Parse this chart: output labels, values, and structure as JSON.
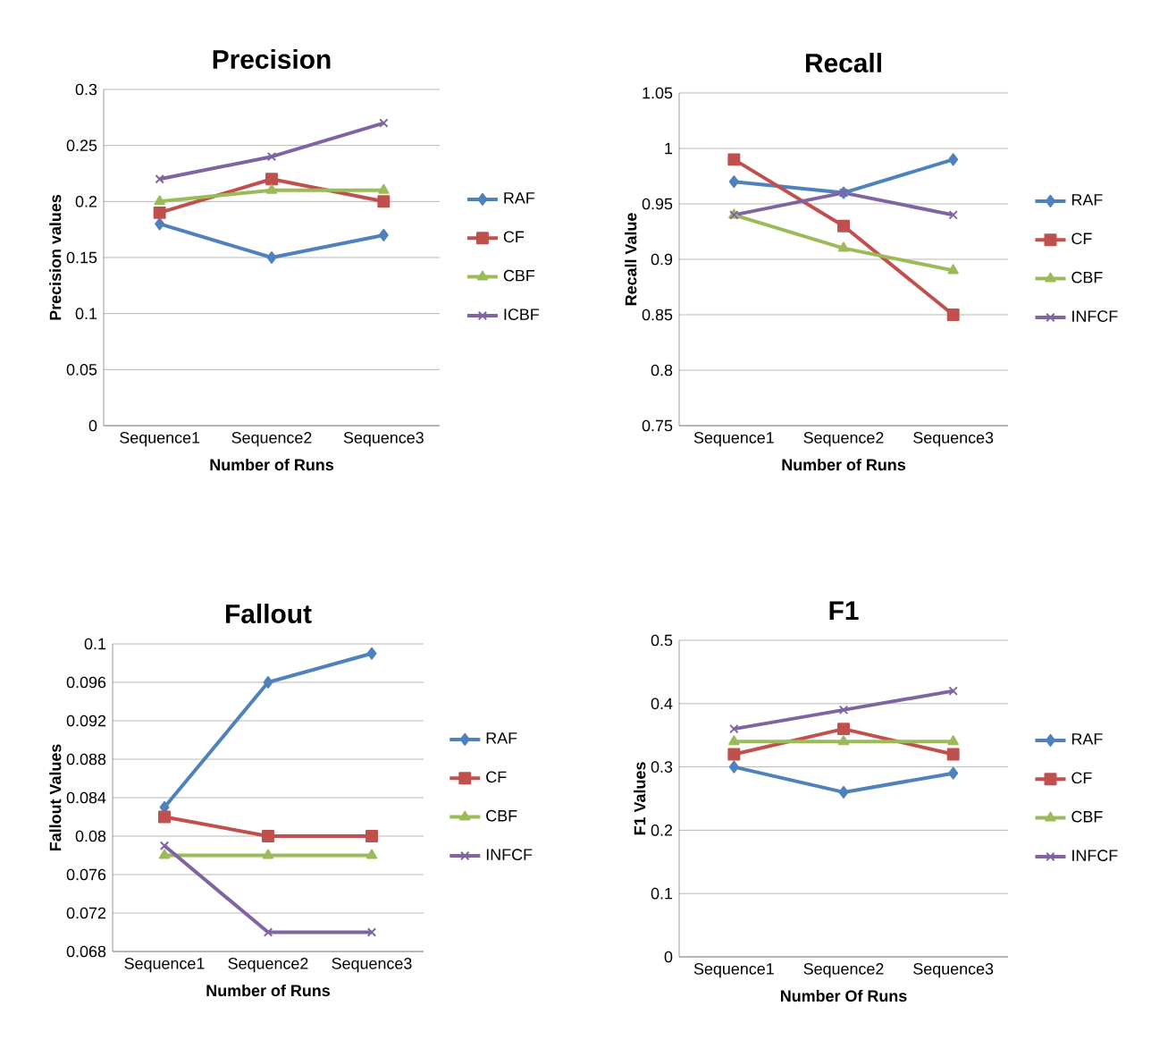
{
  "chart_data": [
    {
      "type": "line",
      "title": "Precision",
      "xlabel": "Number of Runs",
      "ylabel": "Precision  values",
      "categories": [
        "Sequence1",
        "Sequence2",
        "Sequence3"
      ],
      "ylim": [
        0,
        0.3
      ],
      "yticks": [
        0,
        0.05,
        0.1,
        0.15,
        0.2,
        0.25,
        0.3
      ],
      "grid": "y",
      "legend": "right",
      "series": [
        {
          "name": "RAF",
          "color": "#4f81bd",
          "marker": "diamond",
          "values": [
            0.18,
            0.15,
            0.17
          ]
        },
        {
          "name": "CF",
          "color": "#c0504d",
          "marker": "square",
          "values": [
            0.19,
            0.22,
            0.2
          ]
        },
        {
          "name": "CBF",
          "color": "#9bbb59",
          "marker": "triangle",
          "values": [
            0.2,
            0.21,
            0.21
          ]
        },
        {
          "name": "ICBF",
          "color": "#8064a2",
          "marker": "cross",
          "values": [
            0.22,
            0.24,
            0.27
          ]
        }
      ]
    },
    {
      "type": "line",
      "title": "Recall",
      "xlabel": "Number of Runs",
      "ylabel": "Recall Value",
      "categories": [
        "Sequence1",
        "Sequence2",
        "Sequence3"
      ],
      "ylim": [
        0.75,
        1.05
      ],
      "yticks": [
        0.75,
        0.8,
        0.85,
        0.9,
        0.95,
        1,
        1.05
      ],
      "grid": "y",
      "legend": "right",
      "series": [
        {
          "name": "RAF",
          "color": "#4f81bd",
          "marker": "diamond",
          "values": [
            0.97,
            0.96,
            0.99
          ]
        },
        {
          "name": "CF",
          "color": "#c0504d",
          "marker": "square",
          "values": [
            0.99,
            0.93,
            0.85
          ]
        },
        {
          "name": "CBF",
          "color": "#9bbb59",
          "marker": "triangle",
          "values": [
            0.94,
            0.91,
            0.89
          ]
        },
        {
          "name": "INFCF",
          "color": "#8064a2",
          "marker": "cross",
          "values": [
            0.94,
            0.96,
            0.94
          ]
        }
      ]
    },
    {
      "type": "line",
      "title": "Fallout",
      "xlabel": "Number of Runs",
      "ylabel": "Fallout Values",
      "categories": [
        "Sequence1",
        "Sequence2",
        "Sequence3"
      ],
      "ylim": [
        0.068,
        0.1
      ],
      "yticks": [
        0.068,
        0.072,
        0.076,
        0.08,
        0.084,
        0.088,
        0.092,
        0.096,
        0.1
      ],
      "grid": "y",
      "legend": "right",
      "series": [
        {
          "name": "RAF",
          "color": "#4f81bd",
          "marker": "diamond",
          "values": [
            0.083,
            0.096,
            0.099
          ]
        },
        {
          "name": "CF",
          "color": "#c0504d",
          "marker": "square",
          "values": [
            0.082,
            0.08,
            0.08
          ]
        },
        {
          "name": "CBF",
          "color": "#9bbb59",
          "marker": "triangle",
          "values": [
            0.078,
            0.078,
            0.078
          ]
        },
        {
          "name": "INFCF",
          "color": "#8064a2",
          "marker": "cross",
          "values": [
            0.079,
            0.07,
            0.07
          ]
        }
      ]
    },
    {
      "type": "line",
      "title": "F1",
      "xlabel": "Number Of Runs",
      "ylabel": "F1 Values",
      "categories": [
        "Sequence1",
        "Sequence2",
        "Sequence3"
      ],
      "ylim": [
        0,
        0.5
      ],
      "yticks": [
        0,
        0.1,
        0.2,
        0.3,
        0.4,
        0.5
      ],
      "grid": "y",
      "legend": "right",
      "series": [
        {
          "name": "RAF",
          "color": "#4f81bd",
          "marker": "diamond",
          "values": [
            0.3,
            0.26,
            0.29
          ]
        },
        {
          "name": "CF",
          "color": "#c0504d",
          "marker": "square",
          "values": [
            0.32,
            0.36,
            0.32
          ]
        },
        {
          "name": "CBF",
          "color": "#9bbb59",
          "marker": "triangle",
          "values": [
            0.34,
            0.34,
            0.34
          ]
        },
        {
          "name": "INFCF",
          "color": "#8064a2",
          "marker": "cross",
          "values": [
            0.36,
            0.39,
            0.42
          ]
        }
      ]
    }
  ]
}
